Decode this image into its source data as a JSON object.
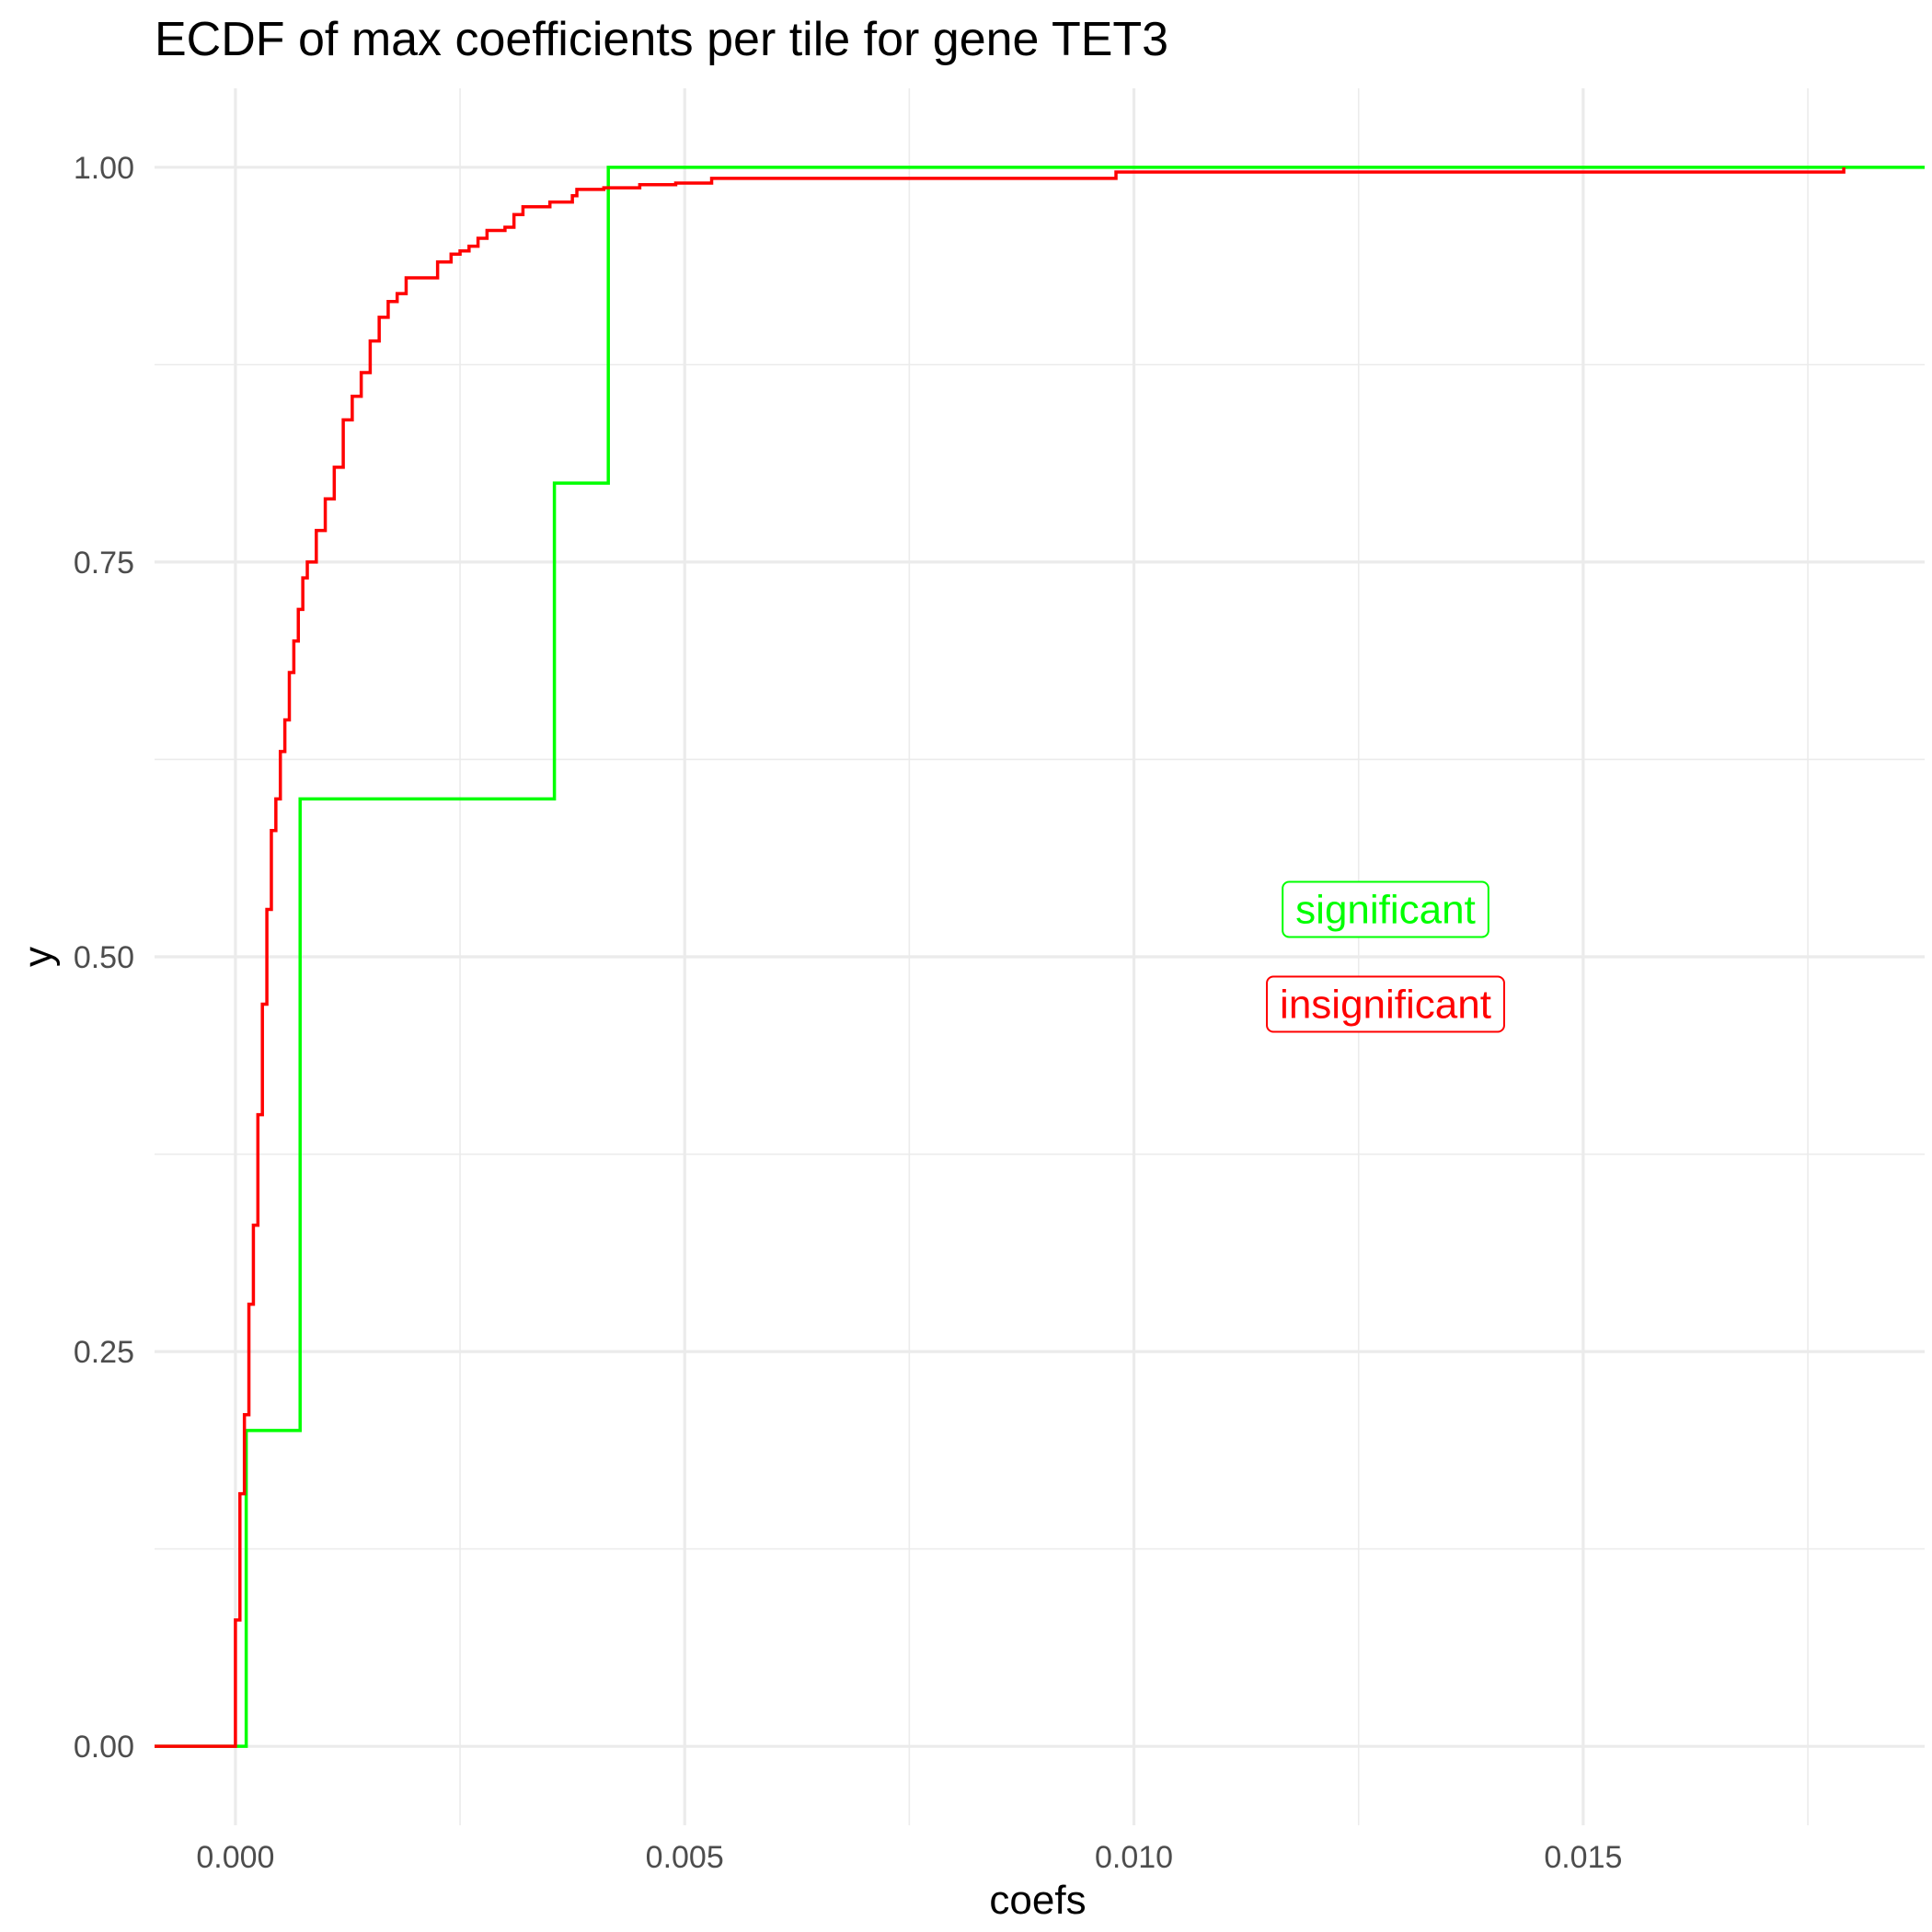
{
  "chart_data": {
    "type": "line",
    "subtype": "ecdf-step",
    "title": "ECDF of max coefficients per tile for gene TET3",
    "xlabel": "coefs",
    "ylabel": "y",
    "xlim": [
      -0.0009,
      0.0188
    ],
    "ylim": [
      -0.05,
      1.05
    ],
    "x_ticks": [
      0.0,
      0.005,
      0.01,
      0.015
    ],
    "x_tick_labels": [
      "0.000",
      "0.005",
      "0.010",
      "0.015"
    ],
    "y_ticks": [
      0.0,
      0.25,
      0.5,
      0.75,
      1.0
    ],
    "y_tick_labels": [
      "0.00",
      "0.25",
      "0.50",
      "0.75",
      "1.00"
    ],
    "grid": true,
    "legend": "none",
    "series": [
      {
        "name": "significant",
        "color": "#00ff00",
        "points": [
          [
            -0.0009,
            0.0
          ],
          [
            0.00012,
            0.0
          ],
          [
            0.00012,
            0.2
          ],
          [
            0.00072,
            0.2
          ],
          [
            0.00072,
            0.6
          ],
          [
            0.00355,
            0.6
          ],
          [
            0.00355,
            0.8
          ],
          [
            0.00415,
            0.8
          ],
          [
            0.00415,
            1.0
          ],
          [
            0.0188,
            1.0
          ]
        ]
      },
      {
        "name": "insignificant",
        "color": "#ff0000",
        "points": [
          [
            -0.0009,
            0.0
          ],
          [
            0.0,
            0.0
          ],
          [
            0.0,
            0.08
          ],
          [
            5e-05,
            0.16
          ],
          [
            0.0001,
            0.21
          ],
          [
            0.00015,
            0.28
          ],
          [
            0.0002,
            0.33
          ],
          [
            0.00025,
            0.4
          ],
          [
            0.0003,
            0.47
          ],
          [
            0.00035,
            0.53
          ],
          [
            0.0004,
            0.58
          ],
          [
            0.00045,
            0.6
          ],
          [
            0.0005,
            0.63
          ],
          [
            0.00055,
            0.65
          ],
          [
            0.0006,
            0.68
          ],
          [
            0.00065,
            0.7
          ],
          [
            0.0007,
            0.72
          ],
          [
            0.00075,
            0.74
          ],
          [
            0.0008,
            0.75
          ],
          [
            0.0009,
            0.77
          ],
          [
            0.001,
            0.79
          ],
          [
            0.0011,
            0.81
          ],
          [
            0.0012,
            0.84
          ],
          [
            0.0013,
            0.855
          ],
          [
            0.0014,
            0.87
          ],
          [
            0.0015,
            0.89
          ],
          [
            0.0016,
            0.905
          ],
          [
            0.0017,
            0.915
          ],
          [
            0.0018,
            0.92
          ],
          [
            0.0019,
            0.93
          ],
          [
            0.0021,
            0.93
          ],
          [
            0.00225,
            0.94
          ],
          [
            0.0024,
            0.945
          ],
          [
            0.0025,
            0.947
          ],
          [
            0.0026,
            0.95
          ],
          [
            0.0027,
            0.955
          ],
          [
            0.0028,
            0.96
          ],
          [
            0.003,
            0.962
          ],
          [
            0.0031,
            0.97
          ],
          [
            0.0032,
            0.975
          ],
          [
            0.0035,
            0.978
          ],
          [
            0.00375,
            0.982
          ],
          [
            0.0038,
            0.986
          ],
          [
            0.0041,
            0.987
          ],
          [
            0.0045,
            0.989
          ],
          [
            0.0049,
            0.99
          ],
          [
            0.0053,
            0.993
          ],
          [
            0.0098,
            0.993
          ],
          [
            0.0098,
            0.997
          ],
          [
            0.0179,
            0.997
          ],
          [
            0.0179,
            1.0
          ]
        ]
      }
    ],
    "annotations": [
      {
        "text": "significant",
        "color": "#00ff00",
        "x": 0.0128,
        "y": 0.53
      },
      {
        "text": "insignificant",
        "color": "#ff0000",
        "x": 0.0128,
        "y": 0.47
      }
    ]
  }
}
